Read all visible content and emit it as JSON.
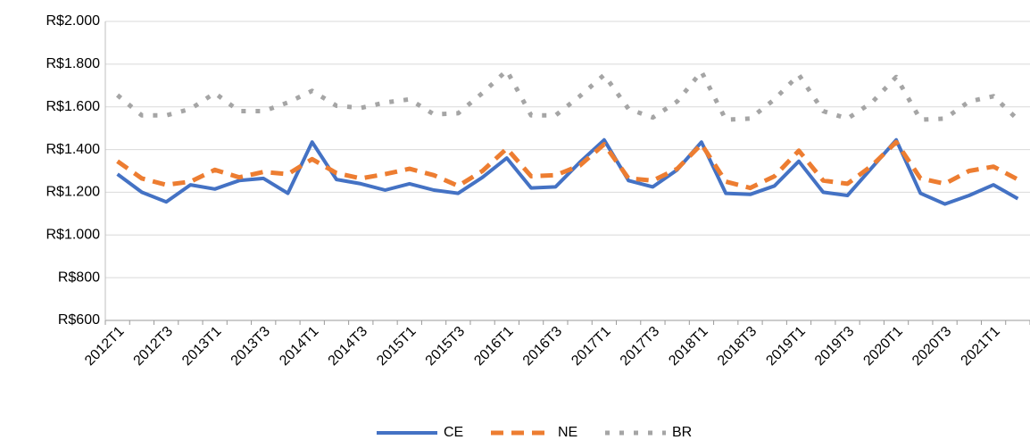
{
  "chart_data": {
    "type": "line",
    "categories": [
      "2012T1",
      null,
      "2012T3",
      null,
      "2013T1",
      null,
      "2013T3",
      null,
      "2014T1",
      null,
      "2014T3",
      null,
      "2015T1",
      null,
      "2015T3",
      null,
      "2016T1",
      null,
      "2016T3",
      null,
      "2017T1",
      null,
      "2017T3",
      null,
      "2018T1",
      null,
      "2018T3",
      null,
      "2019T1",
      null,
      "2019T3",
      null,
      "2020T1",
      null,
      "2020T3",
      null,
      "2021T1",
      null
    ],
    "series": [
      {
        "name": "CE",
        "color": "#4472c4",
        "style": "solid",
        "values": [
          1285,
          1200,
          1155,
          1235,
          1215,
          1255,
          1265,
          1195,
          1435,
          1260,
          1240,
          1210,
          1240,
          1210,
          1195,
          1270,
          1360,
          1220,
          1225,
          1340,
          1445,
          1255,
          1225,
          1305,
          1435,
          1195,
          1190,
          1230,
          1345,
          1200,
          1185,
          1315,
          1445,
          1195,
          1145,
          1185,
          1235,
          1170
        ]
      },
      {
        "name": "NE",
        "color": "#ed7d31",
        "style": "dashed",
        "values": [
          1345,
          1265,
          1235,
          1250,
          1305,
          1270,
          1295,
          1285,
          1355,
          1290,
          1265,
          1285,
          1310,
          1280,
          1230,
          1300,
          1405,
          1275,
          1280,
          1325,
          1425,
          1265,
          1255,
          1310,
          1425,
          1250,
          1220,
          1275,
          1395,
          1255,
          1240,
          1325,
          1435,
          1265,
          1240,
          1300,
          1320,
          1260
        ]
      },
      {
        "name": "BR",
        "color": "#a5a5a5",
        "style": "dotted",
        "values": [
          1655,
          1560,
          1560,
          1590,
          1665,
          1580,
          1580,
          1620,
          1675,
          1605,
          1595,
          1620,
          1635,
          1565,
          1570,
          1665,
          1770,
          1560,
          1560,
          1650,
          1750,
          1590,
          1550,
          1625,
          1765,
          1540,
          1545,
          1635,
          1750,
          1580,
          1545,
          1620,
          1740,
          1540,
          1545,
          1625,
          1650,
          1540
        ]
      }
    ],
    "ylim": [
      600,
      2000
    ],
    "yticks": [
      {
        "value": 600,
        "label": "R$600"
      },
      {
        "value": 800,
        "label": "R$800"
      },
      {
        "value": 1000,
        "label": "R$1.000"
      },
      {
        "value": 1200,
        "label": "R$1.200"
      },
      {
        "value": 1400,
        "label": "R$1.400"
      },
      {
        "value": 1600,
        "label": "R$1.600"
      },
      {
        "value": 1800,
        "label": "R$1.800"
      },
      {
        "value": 2000,
        "label": "R$2.000"
      }
    ],
    "grid": true,
    "legend": "bottom"
  }
}
